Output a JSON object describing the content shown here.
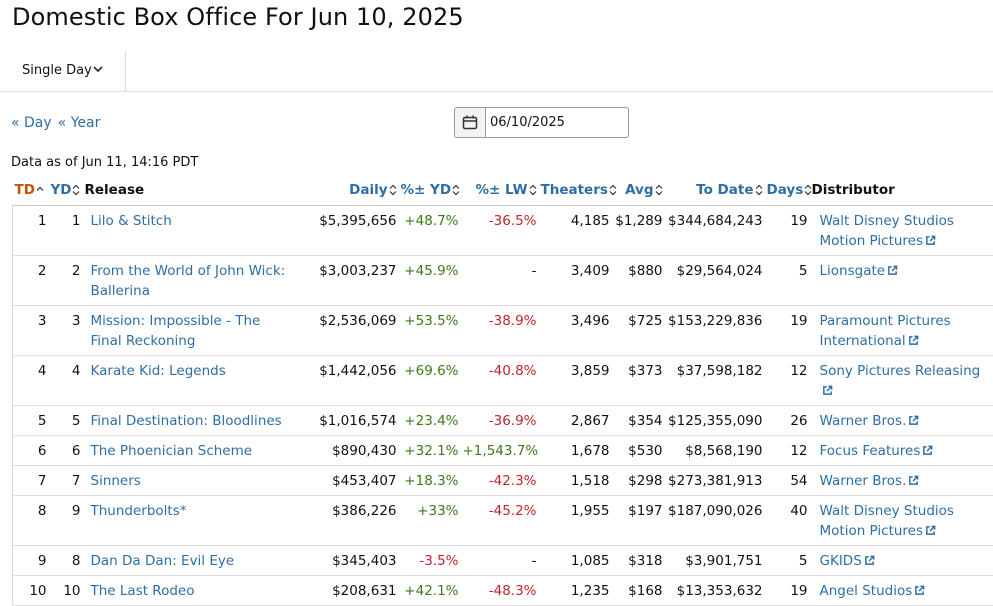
{
  "page": {
    "title": "Domestic Box Office For Jun 10, 2025"
  },
  "view_selector": {
    "label": "Single Day",
    "icon": "chevron-down-icon"
  },
  "nav": {
    "prev_day": "« Day",
    "prev_year": "« Year"
  },
  "date_picker": {
    "value": "06/10/2025",
    "icon": "calendar-icon"
  },
  "as_of": "Data as of Jun 11, 14:16 PDT",
  "colors": {
    "link": "#2f6ea5",
    "active_sort": "#c45500",
    "positive": "#3d7a1a",
    "negative": "#c0252a"
  },
  "table": {
    "headers": {
      "td": "TD",
      "yd": "YD",
      "release": "Release",
      "daily": "Daily",
      "pct_yd": "%± YD",
      "pct_lw": "%± LW",
      "theaters": "Theaters",
      "avg": "Avg",
      "to_date": "To Date",
      "days": "Days",
      "distributor": "Distributor"
    },
    "rows": [
      {
        "td": "1",
        "yd": "1",
        "release": "Lilo & Stitch",
        "daily": "$5,395,656",
        "pct_yd": "+48.7%",
        "pct_lw": "-36.5%",
        "theaters": "4,185",
        "avg": "$1,289",
        "to_date": "$344,684,243",
        "days": "19",
        "distributor": "Walt Disney Studios Motion Pictures"
      },
      {
        "td": "2",
        "yd": "2",
        "release": "From the World of John Wick: Ballerina",
        "daily": "$3,003,237",
        "pct_yd": "+45.9%",
        "pct_lw": "-",
        "theaters": "3,409",
        "avg": "$880",
        "to_date": "$29,564,024",
        "days": "5",
        "distributor": "Lionsgate"
      },
      {
        "td": "3",
        "yd": "3",
        "release": "Mission: Impossible - The Final Reckoning",
        "daily": "$2,536,069",
        "pct_yd": "+53.5%",
        "pct_lw": "-38.9%",
        "theaters": "3,496",
        "avg": "$725",
        "to_date": "$153,229,836",
        "days": "19",
        "distributor": "Paramount Pictures International"
      },
      {
        "td": "4",
        "yd": "4",
        "release": "Karate Kid: Legends",
        "daily": "$1,442,056",
        "pct_yd": "+69.6%",
        "pct_lw": "-40.8%",
        "theaters": "3,859",
        "avg": "$373",
        "to_date": "$37,598,182",
        "days": "12",
        "distributor": "Sony Pictures Releasing"
      },
      {
        "td": "5",
        "yd": "5",
        "release": "Final Destination: Bloodlines",
        "daily": "$1,016,574",
        "pct_yd": "+23.4%",
        "pct_lw": "-36.9%",
        "theaters": "2,867",
        "avg": "$354",
        "to_date": "$125,355,090",
        "days": "26",
        "distributor": "Warner Bros."
      },
      {
        "td": "6",
        "yd": "6",
        "release": "The Phoenician Scheme",
        "daily": "$890,430",
        "pct_yd": "+32.1%",
        "pct_lw": "+1,543.7%",
        "theaters": "1,678",
        "avg": "$530",
        "to_date": "$8,568,190",
        "days": "12",
        "distributor": "Focus Features"
      },
      {
        "td": "7",
        "yd": "7",
        "release": "Sinners",
        "daily": "$453,407",
        "pct_yd": "+18.3%",
        "pct_lw": "-42.3%",
        "theaters": "1,518",
        "avg": "$298",
        "to_date": "$273,381,913",
        "days": "54",
        "distributor": "Warner Bros."
      },
      {
        "td": "8",
        "yd": "9",
        "release": "Thunderbolts*",
        "daily": "$386,226",
        "pct_yd": "+33%",
        "pct_lw": "-45.2%",
        "theaters": "1,955",
        "avg": "$197",
        "to_date": "$187,090,026",
        "days": "40",
        "distributor": "Walt Disney Studios Motion Pictures"
      },
      {
        "td": "9",
        "yd": "8",
        "release": "Dan Da Dan: Evil Eye",
        "daily": "$345,403",
        "pct_yd": "-3.5%",
        "pct_lw": "-",
        "theaters": "1,085",
        "avg": "$318",
        "to_date": "$3,901,751",
        "days": "5",
        "distributor": "GKIDS"
      },
      {
        "td": "10",
        "yd": "10",
        "release": "The Last Rodeo",
        "daily": "$208,631",
        "pct_yd": "+42.1%",
        "pct_lw": "-48.3%",
        "theaters": "1,235",
        "avg": "$168",
        "to_date": "$13,353,632",
        "days": "19",
        "distributor": "Angel Studios"
      }
    ]
  }
}
